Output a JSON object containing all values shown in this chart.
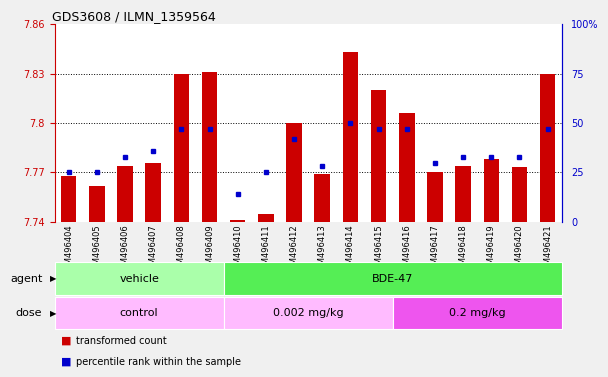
{
  "title": "GDS3608 / ILMN_1359564",
  "samples": [
    "GSM496404",
    "GSM496405",
    "GSM496406",
    "GSM496407",
    "GSM496408",
    "GSM496409",
    "GSM496410",
    "GSM496411",
    "GSM496412",
    "GSM496413",
    "GSM496414",
    "GSM496415",
    "GSM496416",
    "GSM496417",
    "GSM496418",
    "GSM496419",
    "GSM496420",
    "GSM496421"
  ],
  "red_values": [
    7.768,
    7.762,
    7.774,
    7.776,
    7.83,
    7.831,
    7.741,
    7.745,
    7.8,
    7.769,
    7.843,
    7.82,
    7.806,
    7.77,
    7.774,
    7.778,
    7.773,
    7.83
  ],
  "blue_values": [
    25,
    25,
    33,
    36,
    47,
    47,
    14,
    25,
    42,
    28,
    50,
    47,
    47,
    30,
    33,
    33,
    33,
    47
  ],
  "ylim_left": [
    7.74,
    7.86
  ],
  "ylim_right": [
    0,
    100
  ],
  "yticks_left": [
    7.74,
    7.77,
    7.8,
    7.83,
    7.86
  ],
  "yticks_right": [
    0,
    25,
    50,
    75,
    100
  ],
  "ytick_labels_right": [
    "0",
    "25",
    "50",
    "75",
    "100%"
  ],
  "hlines": [
    7.77,
    7.8,
    7.83
  ],
  "agent_groups": [
    {
      "label": "vehicle",
      "start": 0,
      "end": 6,
      "color": "#AAFFAA"
    },
    {
      "label": "BDE-47",
      "start": 6,
      "end": 18,
      "color": "#55EE55"
    }
  ],
  "dose_groups": [
    {
      "label": "control",
      "start": 0,
      "end": 6,
      "color": "#FFBBFF"
    },
    {
      "label": "0.002 mg/kg",
      "start": 6,
      "end": 12,
      "color": "#FFBBFF"
    },
    {
      "label": "0.2 mg/kg",
      "start": 12,
      "end": 18,
      "color": "#EE55EE"
    }
  ],
  "red_color": "#CC0000",
  "blue_color": "#0000CC",
  "base_value": 7.74,
  "legend_items": [
    {
      "label": "transformed count",
      "color": "#CC0000"
    },
    {
      "label": "percentile rank within the sample",
      "color": "#0000CC"
    }
  ],
  "bg_color": "#F0F0F0",
  "plot_bg_color": "#FFFFFF",
  "axis_label_color_left": "#CC0000",
  "axis_label_color_right": "#0000CC",
  "title_color": "#000000",
  "title_fontsize": 9,
  "tick_fontsize": 7,
  "xtick_fontsize": 6,
  "label_fontsize": 8
}
